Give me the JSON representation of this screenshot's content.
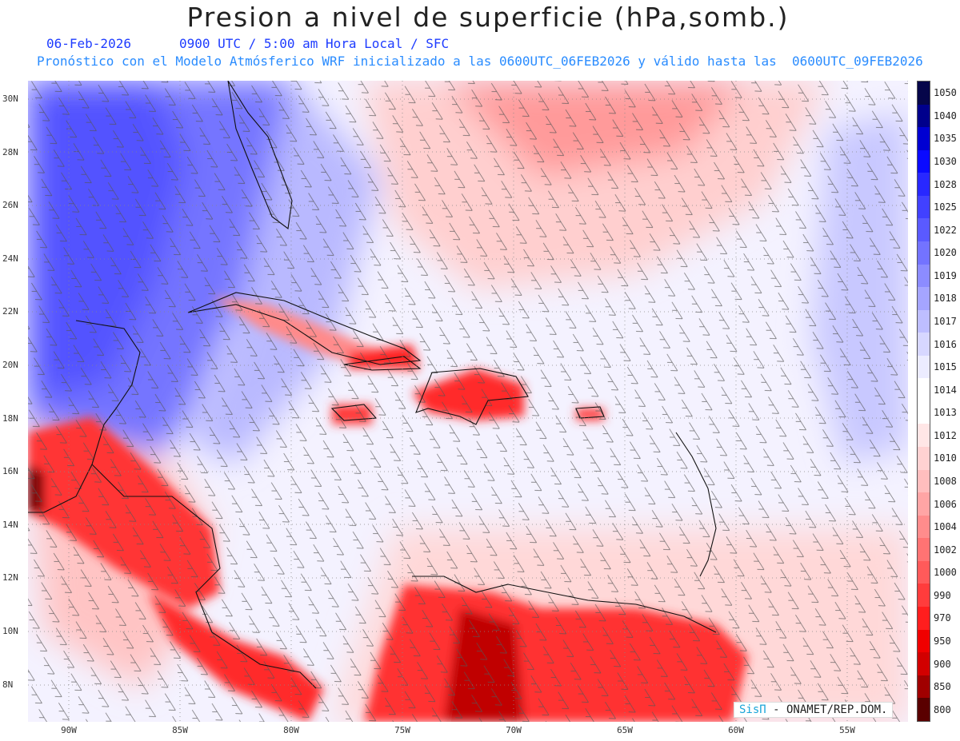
{
  "header": {
    "title": "Presion a nivel de superficie (hPa,somb.)",
    "date": "06-Feb-2026",
    "valid_time": "0900 UTC / 5:00 am Hora Local / SFC",
    "model_info": "Pronóstico con el Modelo Atmósferico WRF inicializado a las 0600UTC_06FEB2026 y válido hasta las  0600UTC_09FEB2026"
  },
  "map": {
    "lat_labels": [
      "30N",
      "28N",
      "26N",
      "24N",
      "22N",
      "20N",
      "18N",
      "16N",
      "14N",
      "12N",
      "10N",
      "8N"
    ],
    "lon_labels": [
      "90W",
      "85W",
      "80W",
      "75W",
      "70W",
      "65W",
      "60W",
      "55W"
    ],
    "gridline_color": "#888888"
  },
  "colorbar": {
    "labels": [
      "1050",
      "1040",
      "1035",
      "1030",
      "1028",
      "1025",
      "1022",
      "1020",
      "1019",
      "1018",
      "1017",
      "1016",
      "1015",
      "1014",
      "1013",
      "1012",
      "1010",
      "1008",
      "1006",
      "1004",
      "1002",
      "1000",
      "990",
      "970",
      "950",
      "900",
      "850",
      "800"
    ],
    "colors": [
      "#06064a",
      "#00008c",
      "#0000d2",
      "#0a0aff",
      "#2828ff",
      "#4141ff",
      "#5a5aff",
      "#7373ff",
      "#8c8cff",
      "#a5a5ff",
      "#bebeff",
      "#d7d7ff",
      "#ececff",
      "#ffffff",
      "#ffffff",
      "#ffe6e6",
      "#ffd2d2",
      "#ffbebe",
      "#ffa5a5",
      "#ff8c8c",
      "#ff7373",
      "#ff5a5a",
      "#ff3c3c",
      "#ff1e1e",
      "#f00000",
      "#d20000",
      "#a00000",
      "#5a0000"
    ]
  },
  "credit": {
    "brand": "SisΠ",
    "org": " - ONAMET/REP.DOM."
  }
}
